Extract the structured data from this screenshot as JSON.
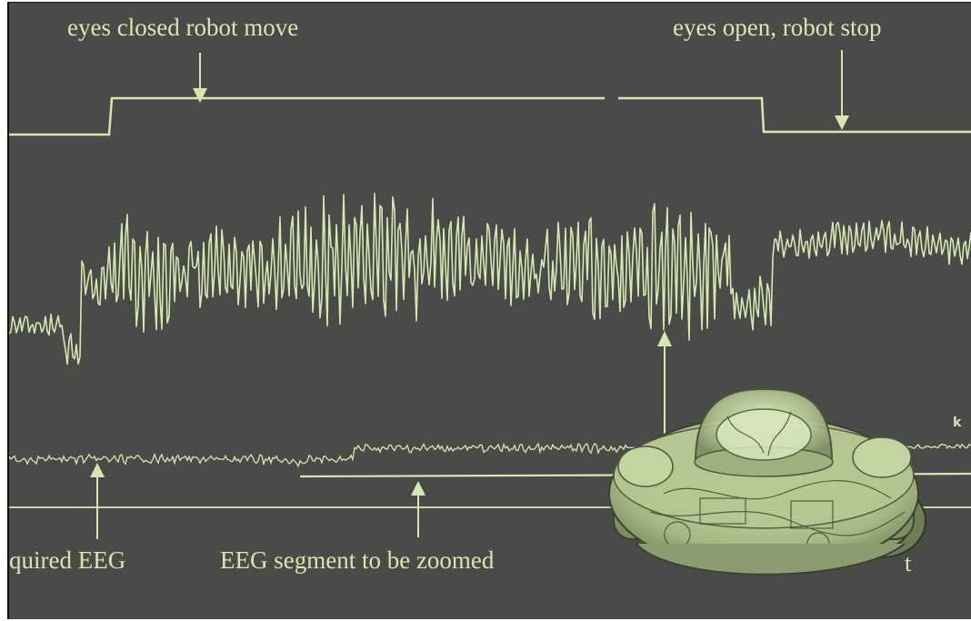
{
  "labels": {
    "eyes_closed": "eyes closed robot move",
    "eyes_open": "eyes open, robot stop",
    "acquired_eeg": "quired EEG",
    "eeg_segment": "EEG segment to be zoomed",
    "partial_right": "t"
  },
  "colors": {
    "background": "#4a4a48",
    "trace": "#d6e8b0",
    "robot_body": "#b8c89a"
  },
  "icons": {
    "robot": "mobile-robot-dome-photo"
  }
}
